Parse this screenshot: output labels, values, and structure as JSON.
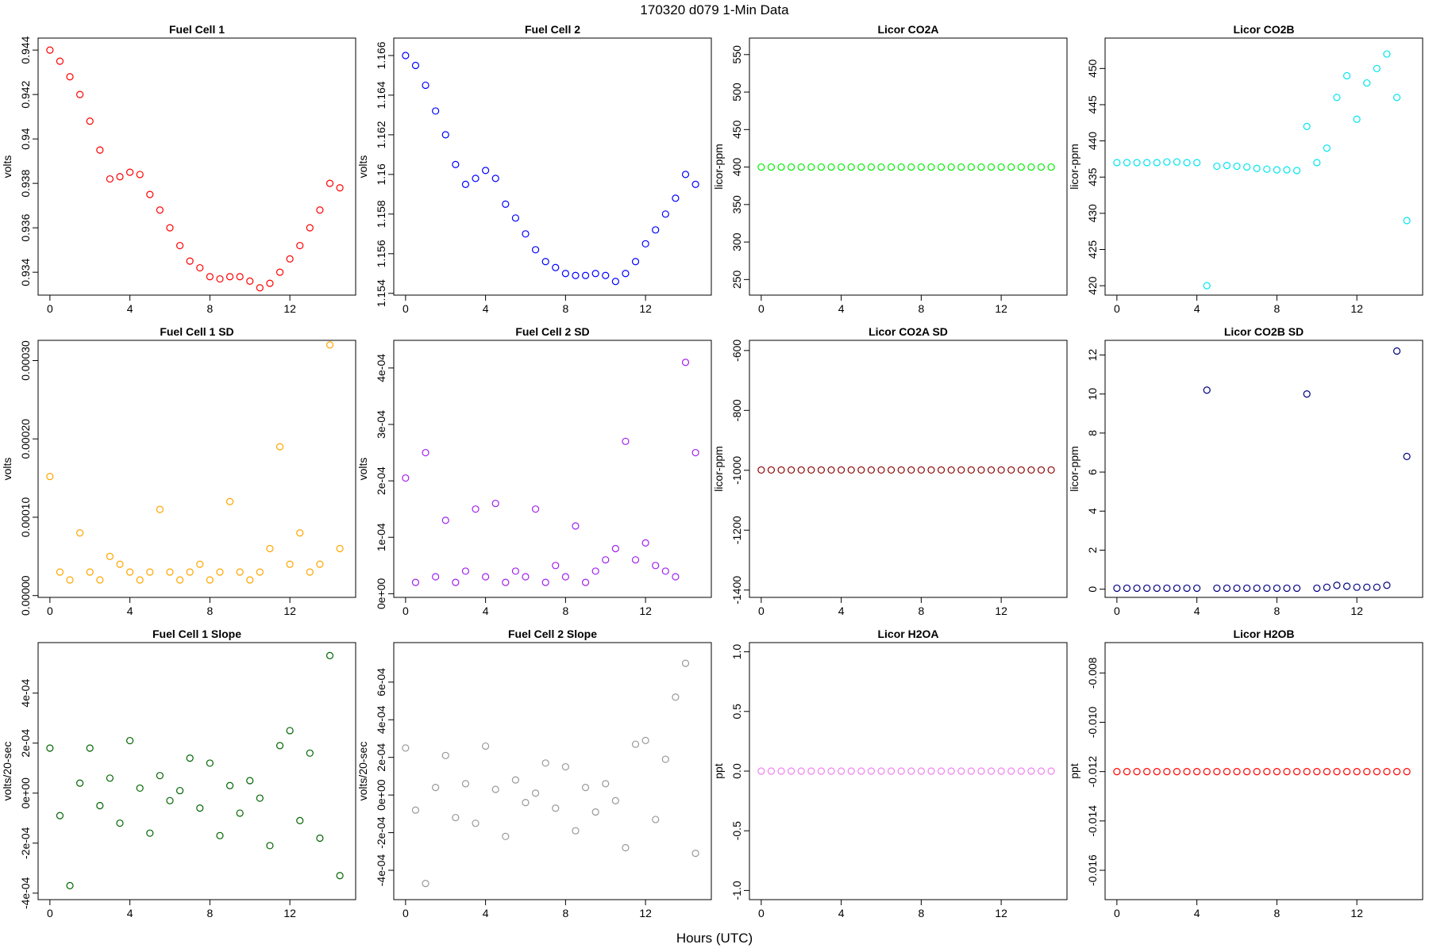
{
  "title": "170320   d079   1-Min Data",
  "x_label": "Hours (UTC)",
  "chart_data": [
    {
      "type": "scatter",
      "title": "Fuel Cell 1",
      "y_label": "volts",
      "color": "#ff0000",
      "x": [
        0,
        0.5,
        1,
        1.5,
        2,
        2.5,
        3,
        3.5,
        4,
        4.5,
        5,
        5.5,
        6,
        6.5,
        7,
        7.5,
        8,
        8.5,
        9,
        9.5,
        10,
        10.5,
        11,
        11.5,
        12,
        12.5,
        13,
        13.5,
        14,
        14.5
      ],
      "values": [
        0.944,
        0.9435,
        0.9428,
        0.942,
        0.9408,
        0.9395,
        0.9382,
        0.9383,
        0.9385,
        0.9384,
        0.9375,
        0.9368,
        0.936,
        0.9352,
        0.9345,
        0.9342,
        0.9338,
        0.9337,
        0.9338,
        0.9338,
        0.9336,
        0.9333,
        0.9335,
        0.934,
        0.9346,
        0.9352,
        0.936,
        0.9368,
        0.938,
        0.9378
      ],
      "xlim": [
        -0.59,
        15.29
      ],
      "xticks": [
        0,
        4,
        8,
        12
      ],
      "ylim": [
        0.93297,
        0.94454
      ],
      "yticks": [
        0.934,
        0.936,
        0.938,
        0.94,
        {
          "value": 0.942,
          "label": "0.942"
        },
        0.944
      ]
    },
    {
      "type": "scatter",
      "title": "Fuel Cell 2",
      "y_label": "volts",
      "color": "#0000ff",
      "x": [
        0,
        0.5,
        1,
        1.5,
        2,
        2.5,
        3,
        3.5,
        4,
        4.5,
        5,
        5.5,
        6,
        6.5,
        7,
        7.5,
        8,
        8.5,
        9,
        9.5,
        10,
        10.5,
        11,
        11.5,
        12,
        12.5,
        13,
        13.5,
        14,
        14.5
      ],
      "values": [
        1.166,
        1.1655,
        1.1645,
        1.1632,
        1.162,
        1.1605,
        1.1595,
        1.1598,
        1.1602,
        1.1598,
        1.1585,
        1.1578,
        1.157,
        1.1562,
        1.1556,
        1.1553,
        1.155,
        1.1549,
        1.1549,
        1.155,
        1.1549,
        1.1546,
        1.155,
        1.1556,
        1.1565,
        1.1572,
        1.158,
        1.1588,
        1.16,
        1.1595
      ],
      "xlim": [
        -0.59,
        15.29
      ],
      "xticks": [
        0,
        4,
        8,
        12
      ],
      "ylim": [
        1.15391,
        1.16688
      ],
      "yticks": [
        1.154,
        1.156,
        1.158,
        1.16,
        1.162,
        1.164,
        1.166
      ]
    },
    {
      "type": "scatter",
      "title": "Licor CO2A",
      "y_label": "licor-ppm",
      "color": "#00ee00",
      "x": [
        0,
        0.5,
        1,
        1.5,
        2,
        2.5,
        3,
        3.5,
        4,
        4.5,
        5,
        5.5,
        6,
        6.5,
        7,
        7.5,
        8,
        8.5,
        9,
        9.5,
        10,
        10.5,
        11,
        11.5,
        12,
        12.5,
        13,
        13.5,
        14,
        14.5
      ],
      "values": [
        400,
        400,
        400,
        400,
        400,
        400,
        400,
        400,
        400,
        400,
        400,
        400,
        400,
        400,
        400,
        400,
        400,
        400,
        400,
        400,
        400,
        400,
        400,
        400,
        400,
        400,
        400,
        400,
        400,
        400
      ],
      "xlim": [
        -0.59,
        15.29
      ],
      "xticks": [
        0,
        4,
        8,
        12
      ],
      "ylim": [
        229.2,
        572
      ],
      "yticks": [
        250,
        300,
        350,
        400,
        450,
        500,
        550
      ]
    },
    {
      "type": "scatter",
      "title": "Licor CO2B",
      "y_label": "licor-ppm",
      "color": "#00e5ee",
      "x": [
        0,
        0.5,
        1,
        1.5,
        2,
        2.5,
        3,
        3.5,
        4,
        4.5,
        5,
        5.5,
        6,
        6.5,
        7,
        7.5,
        8,
        8.5,
        9,
        9.5,
        10,
        10.5,
        11,
        11.5,
        12,
        12.5,
        13,
        13.5,
        14,
        14.5
      ],
      "values": [
        437,
        437,
        437,
        437,
        437,
        437.1,
        437.1,
        437,
        437,
        420,
        436.5,
        436.6,
        436.5,
        436.4,
        436.2,
        436.1,
        436,
        436,
        435.9,
        442,
        437,
        439,
        446,
        449,
        443,
        448,
        450,
        452,
        446,
        429
      ],
      "xlim": [
        -0.59,
        15.29
      ],
      "xticks": [
        0,
        4,
        8,
        12
      ],
      "ylim": [
        418.7,
        454.2
      ],
      "yticks": [
        420,
        425,
        430,
        435,
        440,
        445,
        450
      ]
    },
    {
      "type": "scatter",
      "title": "Fuel Cell 1 SD",
      "y_label": "volts",
      "color": "#ffa500",
      "x": [
        0,
        0.5,
        1,
        1.5,
        2,
        2.5,
        3,
        3.5,
        4,
        4.5,
        5,
        5.5,
        6,
        6.5,
        7,
        7.5,
        8,
        8.5,
        9,
        9.5,
        10,
        10.5,
        11,
        11.5,
        12,
        12.5,
        13,
        13.5,
        14,
        14.5
      ],
      "values": [
        0.000152,
        3e-05,
        2e-05,
        8e-05,
        3e-05,
        2e-05,
        5e-05,
        4e-05,
        3e-05,
        2e-05,
        3e-05,
        0.00011,
        3e-05,
        2e-05,
        3e-05,
        4e-05,
        2e-05,
        3e-05,
        0.00012,
        3e-05,
        2e-05,
        3e-05,
        6e-05,
        0.00019,
        4e-05,
        8e-05,
        3e-05,
        4e-05,
        0.00032,
        6e-05
      ],
      "xlim": [
        -0.59,
        15.29
      ],
      "xticks": [
        0,
        4,
        8,
        12
      ],
      "ylim": [
        -2.3e-06,
        0.0003258
      ],
      "yticks": [
        {
          "value": 0,
          "label": "0.00000"
        },
        {
          "value": 0.0001,
          "label": "0.00010"
        },
        {
          "value": 0.0002,
          "label": "0.00020"
        },
        {
          "value": 0.0003,
          "label": "0.00030"
        }
      ]
    },
    {
      "type": "scatter",
      "title": "Fuel Cell 2 SD",
      "y_label": "volts",
      "color": "#a020f0",
      "x": [
        0,
        0.5,
        1,
        1.5,
        2,
        2.5,
        3,
        3.5,
        4,
        4.5,
        5,
        5.5,
        6,
        6.5,
        7,
        7.5,
        8,
        8.5,
        9,
        9.5,
        10,
        10.5,
        11,
        11.5,
        12,
        12.5,
        13,
        13.5,
        14,
        14.5
      ],
      "values": [
        0.000205,
        2e-05,
        0.00025,
        3e-05,
        0.00013,
        2e-05,
        4e-05,
        0.00015,
        3e-05,
        0.00016,
        2e-05,
        4e-05,
        3e-05,
        0.00015,
        2e-05,
        5e-05,
        3e-05,
        0.00012,
        2e-05,
        4e-05,
        6e-05,
        8e-05,
        0.00027,
        6e-05,
        9e-05,
        5e-05,
        4e-05,
        3e-05,
        0.00041,
        0.00025
      ],
      "xlim": [
        -0.59,
        15.29
      ],
      "xticks": [
        0,
        4,
        8,
        12
      ],
      "ylim": [
        -6.5e-06,
        0.000449
      ],
      "yticks": [
        {
          "value": 0,
          "label": "0e+00"
        },
        {
          "value": 0.0001,
          "label": "1e-04"
        },
        {
          "value": 0.0002,
          "label": "2e-04"
        },
        {
          "value": 0.0003,
          "label": "3e-04"
        },
        {
          "value": 0.0004,
          "label": "4e-04"
        }
      ]
    },
    {
      "type": "scatter",
      "title": "Licor CO2A SD",
      "y_label": "licor-ppm",
      "color": "#8b0000",
      "x": [
        0,
        0.5,
        1,
        1.5,
        2,
        2.5,
        3,
        3.5,
        4,
        4.5,
        5,
        5.5,
        6,
        6.5,
        7,
        7.5,
        8,
        8.5,
        9,
        9.5,
        10,
        10.5,
        11,
        11.5,
        12,
        12.5,
        13,
        13.5,
        14,
        14.5
      ],
      "values": [
        -999,
        -999,
        -999,
        -999,
        -999,
        -999,
        -999,
        -999,
        -999,
        -999,
        -999,
        -999,
        -999,
        -999,
        -999,
        -999,
        -999,
        -999,
        -999,
        -999,
        -999,
        -999,
        -999,
        -999,
        -999,
        -999,
        -999,
        -999,
        -999,
        -999
      ],
      "xlim": [
        -0.59,
        15.29
      ],
      "xticks": [
        0,
        4,
        8,
        12
      ],
      "ylim": [
        -1424.5,
        -566
      ],
      "yticks": [
        -1400,
        -1200,
        -1000,
        -800,
        -600
      ]
    },
    {
      "type": "scatter",
      "title": "Licor CO2B SD",
      "y_label": "licor-ppm",
      "color": "#000080",
      "x": [
        0,
        0.5,
        1,
        1.5,
        2,
        2.5,
        3,
        3.5,
        4,
        4.5,
        5,
        5.5,
        6,
        6.5,
        7,
        7.5,
        8,
        8.5,
        9,
        9.5,
        10,
        10.5,
        11,
        11.5,
        12,
        12.5,
        13,
        13.5,
        14,
        14.5
      ],
      "values": [
        0.05,
        0.05,
        0.05,
        0.05,
        0.05,
        0.05,
        0.05,
        0.05,
        0.05,
        10.2,
        0.05,
        0.05,
        0.05,
        0.05,
        0.05,
        0.05,
        0.05,
        0.05,
        0.05,
        10,
        0.05,
        0.1,
        0.2,
        0.15,
        0.1,
        0.1,
        0.1,
        0.2,
        12.2,
        6.8
      ],
      "xlim": [
        -0.59,
        15.29
      ],
      "xticks": [
        0,
        4,
        8,
        12
      ],
      "ylim": [
        -0.42,
        12.75
      ],
      "yticks": [
        0,
        2,
        4,
        6,
        8,
        10,
        12
      ]
    },
    {
      "type": "scatter",
      "title": "Fuel Cell 1 Slope",
      "y_label": "volts/20-sec",
      "color": "#006400",
      "x": [
        0,
        0.5,
        1,
        1.5,
        2,
        2.5,
        3,
        3.5,
        4,
        4.5,
        5,
        5.5,
        6,
        6.5,
        7,
        7.5,
        8,
        8.5,
        9,
        9.5,
        10,
        10.5,
        11,
        11.5,
        12,
        12.5,
        13,
        13.5,
        14,
        14.5
      ],
      "values": [
        0.00018,
        -9e-05,
        -0.00037,
        4e-05,
        0.00018,
        -5e-05,
        6e-05,
        -0.00012,
        0.00021,
        2e-05,
        -0.00016,
        7e-05,
        -3e-05,
        1e-05,
        0.00014,
        -6e-05,
        0.00012,
        -0.00017,
        3e-05,
        -8e-05,
        5e-05,
        -2e-05,
        -0.00021,
        0.00019,
        0.00025,
        -0.00011,
        0.00016,
        -0.00018,
        0.00055,
        -0.00033
      ],
      "xlim": [
        -0.59,
        15.29
      ],
      "xticks": [
        0,
        4,
        8,
        12
      ],
      "ylim": [
        -0.000426,
        0.000602
      ],
      "yticks": [
        {
          "value": -0.0004,
          "label": "-4e-04"
        },
        {
          "value": -0.0002,
          "label": "-2e-04"
        },
        {
          "value": 0,
          "label": "0e+00"
        },
        {
          "value": 0.0002,
          "label": "2e-04"
        },
        {
          "value": 0.0004,
          "label": "4e-04"
        }
      ]
    },
    {
      "type": "scatter",
      "title": "Fuel Cell 2 Slope",
      "y_label": "volts/20-sec",
      "color": "#999999",
      "x": [
        0,
        0.5,
        1,
        1.5,
        2,
        2.5,
        3,
        3.5,
        4,
        4.5,
        5,
        5.5,
        6,
        6.5,
        7,
        7.5,
        8,
        8.5,
        9,
        9.5,
        10,
        10.5,
        11,
        11.5,
        12,
        12.5,
        13,
        13.5,
        14,
        14.5
      ],
      "values": [
        0.00025,
        -8e-05,
        -0.00047,
        4e-05,
        0.00021,
        -0.00012,
        6e-05,
        -0.00015,
        0.00026,
        3e-05,
        -0.00022,
        8e-05,
        -4e-05,
        1e-05,
        0.00017,
        -7e-05,
        0.00015,
        -0.00019,
        4e-05,
        -9e-05,
        6e-05,
        -3e-05,
        -0.00028,
        0.00027,
        0.00029,
        -0.00013,
        0.00019,
        0.00052,
        0.0007,
        -0.00031
      ],
      "xlim": [
        -0.59,
        15.29
      ],
      "xticks": [
        0,
        4,
        8,
        12
      ],
      "ylim": [
        -0.000556,
        0.00081
      ],
      "yticks": [
        {
          "value": -0.0004,
          "label": "-4e-04"
        },
        {
          "value": -0.0002,
          "label": "-2e-04"
        },
        {
          "value": 0,
          "label": "0e+00"
        },
        {
          "value": 0.0002,
          "label": "2e-04"
        },
        {
          "value": 0.0004,
          "label": "4e-04"
        },
        {
          "value": 0.0006,
          "label": "6e-04"
        }
      ]
    },
    {
      "type": "scatter",
      "title": "Licor H2OA",
      "y_label": "ppt",
      "color": "#ee82ee",
      "x": [
        0,
        0.5,
        1,
        1.5,
        2,
        2.5,
        3,
        3.5,
        4,
        4.5,
        5,
        5.5,
        6,
        6.5,
        7,
        7.5,
        8,
        8.5,
        9,
        9.5,
        10,
        10.5,
        11,
        11.5,
        12,
        12.5,
        13,
        13.5,
        14,
        14.5
      ],
      "values": [
        0,
        0,
        0,
        0,
        0,
        0,
        0,
        0,
        0,
        0,
        0,
        0,
        0,
        0,
        0,
        0,
        0,
        0,
        0,
        0,
        0,
        0,
        0,
        0,
        0,
        0,
        0,
        0,
        0,
        0
      ],
      "xlim": [
        -0.59,
        15.29
      ],
      "xticks": [
        0,
        4,
        8,
        12
      ],
      "ylim": [
        -1.077,
        1.077
      ],
      "yticks": [
        {
          "value": -1,
          "label": "-1.0"
        },
        -0.5,
        {
          "value": 0,
          "label": "0.0"
        },
        0.5,
        {
          "value": 1,
          "label": "1.0"
        }
      ]
    },
    {
      "type": "scatter",
      "title": "Licor H2OB",
      "y_label": "ppt",
      "color": "#ff0000",
      "x": [
        0,
        0.5,
        1,
        1.5,
        2,
        2.5,
        3,
        3.5,
        4,
        4.5,
        5,
        5.5,
        6,
        6.5,
        7,
        7.5,
        8,
        8.5,
        9,
        9.5,
        10,
        10.5,
        11,
        11.5,
        12,
        12.5,
        13,
        13.5,
        14,
        14.5
      ],
      "values": [
        -0.012,
        -0.012,
        -0.012,
        -0.012,
        -0.012,
        -0.012,
        -0.012,
        -0.012,
        -0.012,
        -0.012,
        -0.012,
        -0.012,
        -0.012,
        -0.012,
        -0.012,
        -0.012,
        -0.012,
        -0.012,
        -0.012,
        -0.012,
        -0.012,
        -0.012,
        -0.012,
        -0.012,
        -0.012,
        -0.012,
        -0.012,
        -0.012,
        -0.012,
        -0.012
      ],
      "xlim": [
        -0.59,
        15.29
      ],
      "xticks": [
        0,
        4,
        8,
        12
      ],
      "ylim": [
        -0.01719,
        -0.00677
      ],
      "yticks": [
        -0.016,
        -0.014,
        -0.012,
        {
          "value": -0.01,
          "label": "-0.010"
        },
        -0.008
      ]
    }
  ]
}
